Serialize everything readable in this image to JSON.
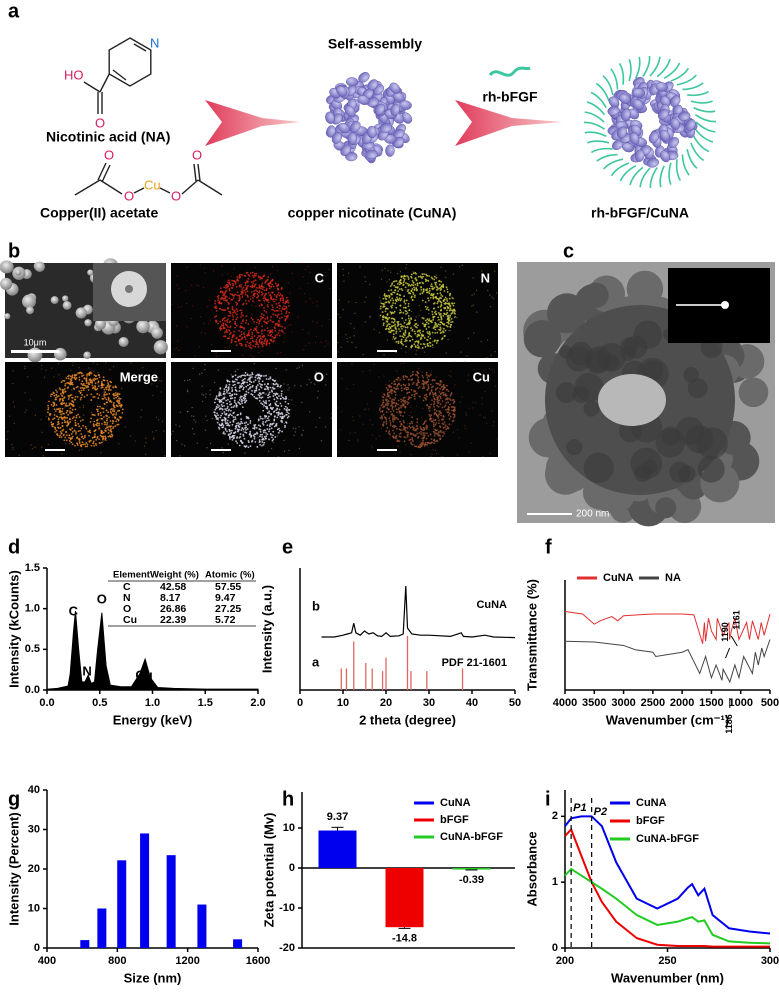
{
  "panel_a": {
    "label": "a",
    "step_label": "Self-assembly",
    "ligand_label": "rh-bFGF",
    "na_label": "Nicotinic acid (NA)",
    "acetate_label": "Copper(II) acetate",
    "cuna_label": "copper nicotinate (CuNA)",
    "product_label": "rh-bFGF/CuNA",
    "na_atoms": [
      "N",
      "HO",
      "O"
    ],
    "acetate_atoms": [
      "O",
      "O",
      "Cu",
      "O",
      "O"
    ]
  },
  "panel_b": {
    "label": "b",
    "images": [
      "C",
      "N",
      "Merge",
      "O",
      "Cu"
    ],
    "scale_bar": "10μm"
  },
  "panel_c": {
    "label": "c",
    "scale_bar": "200 nm"
  },
  "chart_data": [
    {
      "label": "d",
      "type": "area",
      "xlabel": "Energy (keV)",
      "ylabel": "Intensity (kCounts)",
      "color": "#000000",
      "x": [
        0,
        0.1,
        0.2,
        0.22,
        0.25,
        0.27,
        0.3,
        0.33,
        0.36,
        0.39,
        0.42,
        0.45,
        0.48,
        0.52,
        0.56,
        0.6,
        0.7,
        0.8,
        0.88,
        0.93,
        0.98,
        1.05,
        1.2,
        1.5,
        2.0
      ],
      "values": [
        0.01,
        0.02,
        0.05,
        0.2,
        0.7,
        0.97,
        0.5,
        0.1,
        0.1,
        0.18,
        0.08,
        0.1,
        0.5,
        0.95,
        0.3,
        0.06,
        0.04,
        0.04,
        0.2,
        0.38,
        0.15,
        0.03,
        0.02,
        0.01,
        0.01
      ],
      "xlim": [
        0,
        2
      ],
      "xticks": [
        {
          "value": 0,
          "label": "0.0"
        },
        0.5,
        {
          "value": 1,
          "label": "1.0"
        },
        1.5,
        {
          "value": 2,
          "label": "2.0"
        }
      ],
      "ylim": [
        0,
        1.5
      ],
      "yticks": [
        {
          "value": 0,
          "label": "0.0"
        },
        0.5,
        {
          "value": 1,
          "label": "1.0"
        },
        1.5
      ],
      "annotations": [
        "C",
        "N",
        "O",
        "Cu"
      ],
      "table": {
        "header": [
          "Element",
          "Weight (%)",
          "Atomic (%)"
        ],
        "rows": [
          [
            "C",
            42.58,
            57.55
          ],
          [
            "N",
            8.17,
            9.47
          ],
          [
            "O",
            26.86,
            27.25
          ],
          [
            "Cu",
            22.39,
            5.72
          ]
        ]
      }
    },
    {
      "label": "e",
      "type": "xrd",
      "xlabel": "2 theta (degree)",
      "ylabel": "Intensity (a.u.)",
      "xlim": [
        0,
        50
      ],
      "xticks": [
        0,
        10,
        20,
        30,
        40,
        50
      ],
      "series": [
        {
          "name": "CuNA",
          "trace_label": "b",
          "color": "#000000",
          "x": [
            5,
            8,
            10,
            11,
            12,
            12.5,
            13,
            14,
            15,
            16,
            17,
            18,
            19,
            20,
            21,
            23,
            24,
            24.6,
            25,
            26,
            28,
            30,
            35,
            37.5,
            38,
            40,
            43,
            45,
            50
          ],
          "values": [
            0.05,
            0.05,
            0.08,
            0.1,
            0.12,
            0.28,
            0.12,
            0.08,
            0.15,
            0.1,
            0.12,
            0.07,
            0.06,
            0.12,
            0.06,
            0.07,
            0.1,
            0.9,
            0.2,
            0.1,
            0.08,
            0.08,
            0.06,
            0.12,
            0.06,
            0.05,
            0.08,
            0.05,
            0.04
          ]
        },
        {
          "name": "PDF 21-1601",
          "trace_label": "a",
          "color": "#e06666",
          "style": "sticks",
          "x": [
            9.6,
            10.8,
            12.5,
            15.3,
            16.8,
            19.2,
            20.0,
            25.0,
            25.8,
            29.5,
            37.8
          ],
          "values": [
            0.4,
            0.4,
            0.9,
            0.5,
            0.4,
            0.35,
            0.6,
            1.0,
            0.35,
            0.35,
            0.4
          ]
        }
      ]
    },
    {
      "label": "f",
      "type": "line",
      "xlabel": "Wavenumber (cm⁻¹)",
      "ylabel": "Transmittance (%)",
      "xlim": [
        4000,
        500
      ],
      "xticks": [
        4000,
        3500,
        3000,
        2500,
        2000,
        1500,
        1000,
        500
      ],
      "series": [
        {
          "name": "CuNA",
          "color": "#e03030",
          "x": [
            4000,
            3700,
            3500,
            3400,
            3200,
            3100,
            3000,
            2500,
            2000,
            1800,
            1650,
            1620,
            1600,
            1550,
            1500,
            1420,
            1400,
            1300,
            1200,
            1190,
            1161,
            1100,
            1030,
            900,
            850,
            800,
            700,
            650,
            600,
            500
          ],
          "values": [
            0.83,
            0.8,
            0.68,
            0.72,
            0.77,
            0.72,
            0.78,
            0.8,
            0.8,
            0.79,
            0.45,
            0.7,
            0.48,
            0.75,
            0.6,
            0.5,
            0.75,
            0.55,
            0.7,
            0.5,
            0.6,
            0.75,
            0.5,
            0.7,
            0.5,
            0.72,
            0.5,
            0.7,
            0.55,
            0.8
          ]
        },
        {
          "name": "NA",
          "color": "#444444",
          "x": [
            4000,
            3500,
            3000,
            2800,
            2500,
            2450,
            2000,
            1900,
            1700,
            1600,
            1500,
            1420,
            1320,
            1300,
            1186,
            1100,
            1030,
            950,
            800,
            750,
            700,
            640,
            600,
            500
          ],
          "values": [
            0.48,
            0.47,
            0.43,
            0.38,
            0.35,
            0.3,
            0.35,
            0.38,
            0.1,
            0.3,
            0.05,
            0.2,
            0.02,
            0.15,
            0.0,
            0.2,
            0.05,
            0.3,
            0.1,
            0.35,
            0.2,
            0.4,
            0.3,
            0.5
          ]
        }
      ],
      "annotations": [
        {
          "text": "1190",
          "x": 1190
        },
        {
          "text": "1161",
          "x": 1161
        },
        {
          "text": "1186",
          "x": 1186
        }
      ]
    },
    {
      "label": "g",
      "type": "histbar",
      "xlabel": "Size (nm)",
      "ylabel": "Intensity (Percent)",
      "color": "#0000ee",
      "x": [
        615,
        712,
        825,
        955,
        1106,
        1281,
        1484
      ],
      "values": [
        2,
        10,
        22.2,
        29,
        23.5,
        11,
        2.2
      ],
      "xlim": [
        400,
        1600
      ],
      "xticks": [
        400,
        800,
        1200,
        1600
      ],
      "ylim": [
        0,
        40
      ],
      "yticks": [
        0,
        10,
        20,
        30,
        40
      ]
    },
    {
      "label": "h",
      "type": "bar",
      "ylabel": "Zeta potential (Mv)",
      "categories": [
        "CuNA",
        "bFGF",
        "CuNA-bFGF"
      ],
      "values": [
        9.37,
        -14.8,
        -0.39
      ],
      "errors": [
        0.8,
        0.3,
        0.1
      ],
      "colors": [
        "#0000ee",
        "#ee0000",
        "#22cc22"
      ],
      "ylim": [
        -20,
        19
      ],
      "yticks": [
        -20,
        -10,
        0,
        10
      ]
    },
    {
      "label": "i",
      "type": "line",
      "xlabel": "Wavenumber (nm)",
      "ylabel": "Absorbance",
      "x": [
        200,
        203,
        208,
        213,
        218,
        225,
        235,
        245,
        255,
        260,
        262,
        265,
        268,
        272,
        280,
        290,
        300
      ],
      "series": [
        {
          "name": "CuNA",
          "color": "#0000ee",
          "values": [
            1.85,
            1.97,
            2.0,
            2.0,
            1.85,
            1.3,
            0.75,
            0.6,
            0.75,
            0.92,
            0.97,
            0.8,
            0.9,
            0.5,
            0.3,
            0.25,
            0.22
          ]
        },
        {
          "name": "bFGF",
          "color": "#ee0000",
          "values": [
            1.7,
            1.8,
            1.4,
            1.0,
            0.7,
            0.4,
            0.15,
            0.05,
            0.03,
            0.03,
            0.03,
            0.03,
            0.03,
            0.02,
            0.02,
            0.02,
            0.02
          ]
        },
        {
          "name": "CuNA-bFGF",
          "color": "#22cc22",
          "values": [
            1.1,
            1.2,
            1.1,
            1.0,
            0.9,
            0.75,
            0.5,
            0.35,
            0.4,
            0.45,
            0.47,
            0.4,
            0.42,
            0.2,
            0.1,
            0.08,
            0.07
          ]
        }
      ],
      "xlim": [
        200,
        300
      ],
      "xticks": [
        200,
        250,
        300
      ],
      "ylim": [
        0,
        2.4
      ],
      "yticks": [
        0,
        1,
        2
      ],
      "reference_lines": [
        {
          "x": 203,
          "label": "P1"
        },
        {
          "x": 213,
          "label": "P2"
        }
      ]
    }
  ]
}
